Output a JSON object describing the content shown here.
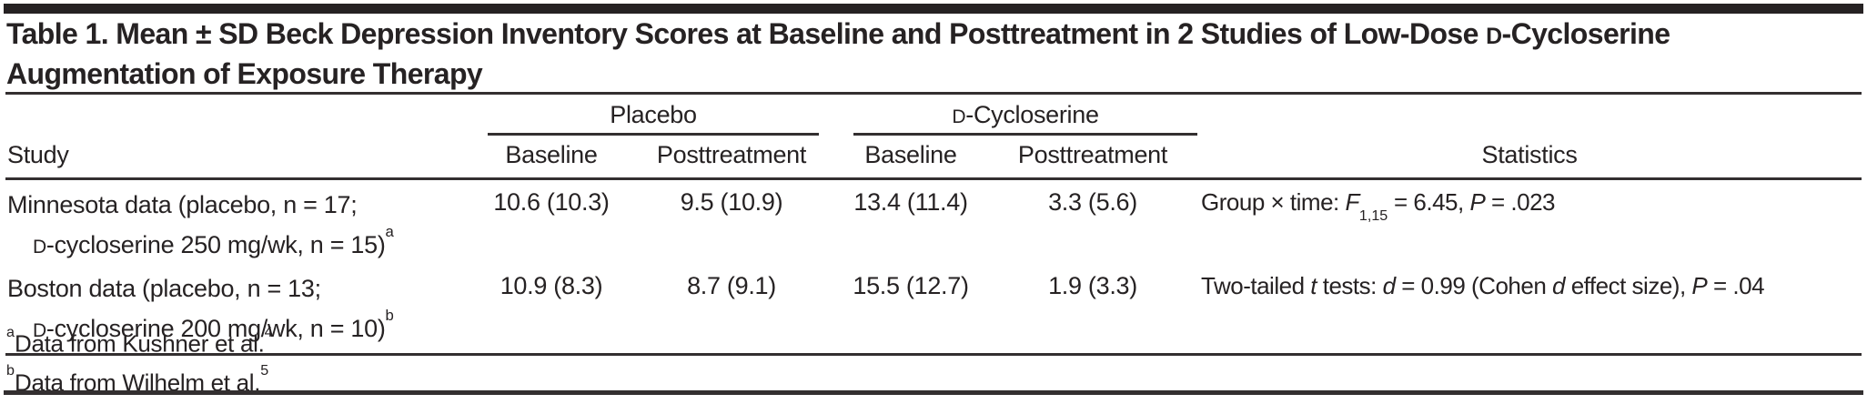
{
  "title": {
    "line1_a": "Table 1. Mean ± SD Beck Depression Inventory Scores at Baseline and Posttreatment in 2 Studies of Low-Dose ",
    "line1_smallcap": "D",
    "line1_b": "-Cycloserine",
    "line2": "Augmentation of Exposure Therapy"
  },
  "headers": {
    "study": "Study",
    "group_placebo": "Placebo",
    "group_dcs_smallcap": "D",
    "group_dcs_rest": "-Cycloserine",
    "baseline": "Baseline",
    "posttreatment": "Posttreatment",
    "statistics": "Statistics"
  },
  "rows": [
    {
      "study_line1": "Minnesota data (placebo, n = 17;",
      "study_line2_smallcap": "D",
      "study_line2": "-cycloserine 250 mg/wk, n = 15)",
      "footnote_mark": "a",
      "placebo_baseline": "10.6 (10.3)",
      "placebo_posttreatment": "9.5 (10.9)",
      "dcycloserine_baseline": "13.4 (11.4)",
      "dcycloserine_posttreatment": "3.3 (5.6)",
      "stats": {
        "prefix": "Group × time: ",
        "f": "F",
        "f_sub": "1,15",
        "mid": " = 6.45, ",
        "p": "P",
        "suffix": " = .023"
      }
    },
    {
      "study_line1": "Boston data (placebo, n = 13;",
      "study_line2_smallcap": "D",
      "study_line2": "-cycloserine 200 mg/wk, n = 10)",
      "footnote_mark": "b",
      "placebo_baseline": "10.9 (8.3)",
      "placebo_posttreatment": "8.7 (9.1)",
      "dcycloserine_baseline": "15.5 (12.7)",
      "dcycloserine_posttreatment": "1.9 (3.3)",
      "stats": {
        "seg1": "Two-tailed ",
        "t": "t",
        "seg2": " tests: ",
        "d1": "d",
        "seg3": " = 0.99 (Cohen ",
        "d2": "d",
        "seg4": " effect size), ",
        "p": "P",
        "seg5": " = .04"
      }
    }
  ],
  "footnotes": [
    {
      "mark": "a",
      "text": "Data from Kushner et al.",
      "ref": "4"
    },
    {
      "mark": "b",
      "text": "Data from Wilhelm et al.",
      "ref": "5"
    }
  ]
}
